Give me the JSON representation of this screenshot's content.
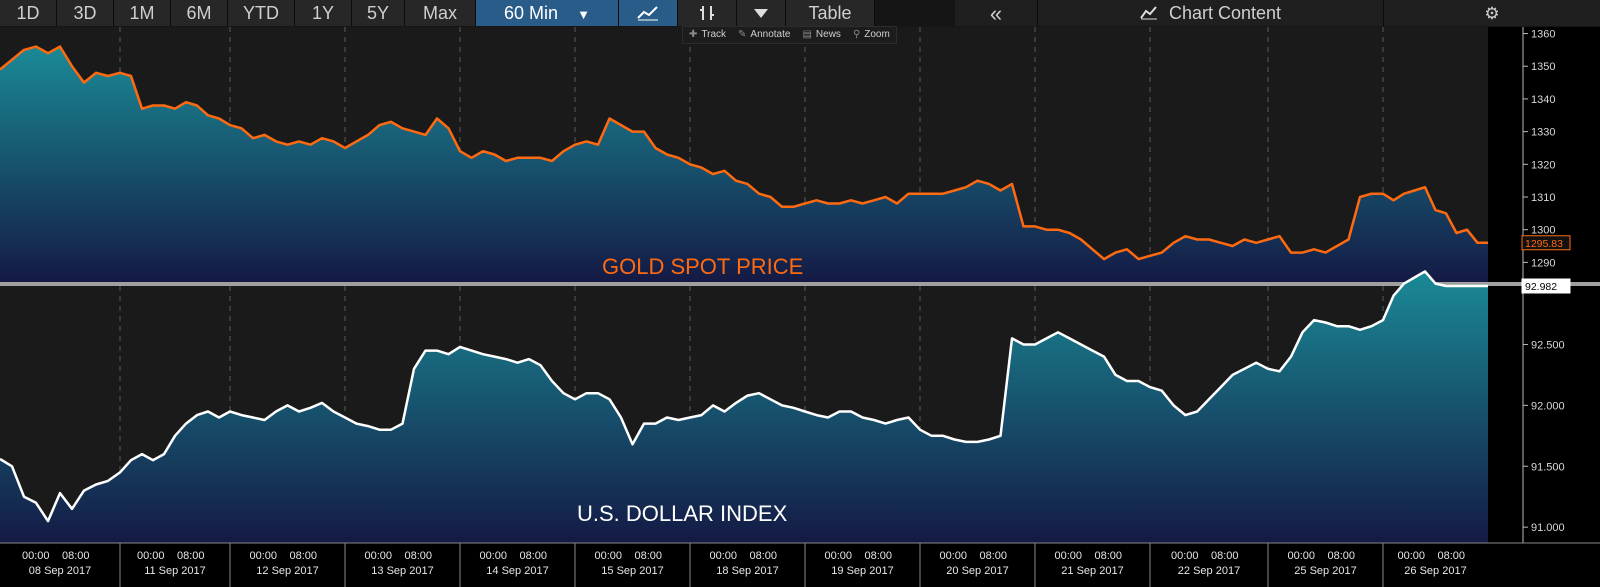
{
  "toolbar": {
    "ranges": [
      "1D",
      "3D",
      "1M",
      "6M",
      "YTD",
      "1Y",
      "5Y",
      "Max"
    ],
    "interval": "60 Min",
    "table_label": "Table",
    "collapse_label": "«",
    "chart_content_label": "Chart Content"
  },
  "minitools": {
    "track": "Track",
    "annotate": "Annotate",
    "news": "News",
    "zoom": "Zoom"
  },
  "colors": {
    "gold_line": "#ff6a10",
    "dxy_line": "#ffffff",
    "area_top": "#1a8a96",
    "area_bottom": "#141a45",
    "background": "#1a1a1a"
  },
  "chart_data": [
    {
      "type": "area",
      "title": "GOLD SPOT PRICE",
      "ylim": [
        1284,
        1362
      ],
      "yticks": [
        1290,
        1300,
        1310,
        1320,
        1330,
        1340,
        1350,
        1360
      ],
      "last_value_label": "1295.83",
      "dates": [
        "08 Sep 2017",
        "11 Sep 2017",
        "12 Sep 2017",
        "13 Sep 2017",
        "14 Sep 2017",
        "15 Sep 2017",
        "18 Sep 2017",
        "19 Sep 2017",
        "20 Sep 2017",
        "21 Sep 2017",
        "22 Sep 2017",
        "25 Sep 2017",
        "26 Sep 2017"
      ],
      "series": [
        {
          "values": [
            [
              [
                1349,
                1352,
                1355,
                1356,
                1354,
                1356,
                1350,
                1345,
                1348,
                1347
              ],
              [
                1348,
                1347,
                1337,
                1338,
                1338,
                1337,
                1339,
                1338,
                1335,
                1334
              ],
              [
                1332,
                1331,
                1328,
                1329,
                1327,
                1326,
                1327,
                1326,
                1328,
                1327
              ],
              [
                1325,
                1327,
                1329,
                1332,
                1333,
                1331,
                1330,
                1329,
                1334,
                1331
              ],
              [
                1324,
                1322,
                1324,
                1323,
                1321,
                1322,
                1322,
                1322,
                1321,
                1324
              ],
              [
                1326,
                1327,
                1326,
                1334,
                1332,
                1330,
                1330,
                1325,
                1323,
                1322
              ],
              [
                1320,
                1319,
                1317,
                1318,
                1315,
                1314,
                1311,
                1310,
                1307,
                1307
              ],
              [
                1308,
                1309,
                1308,
                1308,
                1309,
                1308,
                1309,
                1310,
                1308,
                1311
              ],
              [
                1311,
                1311,
                1311,
                1312,
                1313,
                1315,
                1314,
                1312,
                1314,
                1301
              ],
              [
                1301,
                1300,
                1300,
                1299,
                1297,
                1294,
                1291,
                1293,
                1294,
                1291
              ],
              [
                1292,
                1293,
                1296,
                1298,
                1297,
                1297,
                1296,
                1295,
                1297,
                1296
              ],
              [
                1297,
                1298,
                1293,
                1293,
                1294,
                1293,
                1295,
                1297,
                1310,
                1311
              ],
              [
                1311,
                1309,
                1311,
                1312,
                1313,
                1306,
                1305,
                1299,
                1300,
                1296
              ]
            ]
          ]
        }
      ]
    },
    {
      "type": "area",
      "title": "U.S. DOLLAR INDEX",
      "ylim": [
        90.87,
        92.98
      ],
      "ylim_note": "",
      "yticks": [
        91.0,
        91.5,
        92.0,
        92.5
      ],
      "ytick_labels": [
        "91.000",
        "91.500",
        "92.000",
        "92.500"
      ],
      "last_value_label": "92.982",
      "series": [
        {
          "values": [
            [
              [
                91.56,
                91.5,
                91.25,
                91.2,
                91.05,
                91.28,
                91.15,
                91.3,
                91.35,
                91.38
              ],
              [
                91.45,
                91.55,
                91.6,
                91.55,
                91.6,
                91.75,
                91.85,
                91.92,
                91.95,
                91.9
              ],
              [
                91.95,
                91.92,
                91.9,
                91.88,
                91.95,
                92.0,
                91.95,
                91.98,
                92.02,
                91.95
              ],
              [
                91.9,
                91.85,
                91.83,
                91.8,
                91.8,
                91.85,
                92.3,
                92.45,
                92.45,
                92.42
              ],
              [
                92.48,
                92.45,
                92.42,
                92.4,
                92.38,
                92.35,
                92.38,
                92.33,
                92.2,
                92.1
              ],
              [
                92.05,
                92.1,
                92.1,
                92.05,
                91.9,
                91.68,
                91.85,
                91.85,
                91.9,
                91.88
              ],
              [
                91.9,
                91.92,
                92.0,
                91.95,
                92.02,
                92.08,
                92.1,
                92.05,
                92.0,
                91.98
              ],
              [
                91.95,
                91.92,
                91.9,
                91.95,
                91.95,
                91.9,
                91.88,
                91.85,
                91.88,
                91.9
              ],
              [
                91.8,
                91.75,
                91.75,
                91.72,
                91.7,
                91.7,
                91.72,
                91.75,
                92.55,
                92.5
              ],
              [
                92.5,
                92.55,
                92.6,
                92.55,
                92.5,
                92.45,
                92.4,
                92.25,
                92.2,
                92.2
              ],
              [
                92.15,
                92.12,
                92.0,
                91.92,
                91.95,
                92.05,
                92.15,
                92.25,
                92.3,
                92.35
              ],
              [
                92.3,
                92.28,
                92.4,
                92.6,
                92.7,
                92.68,
                92.65,
                92.65,
                92.62,
                92.65
              ],
              [
                92.7,
                92.9,
                93.0,
                93.05,
                93.1,
                93.0,
                92.98,
                92.98,
                92.98,
                92.98
              ]
            ]
          ]
        }
      ]
    }
  ],
  "date_axis": {
    "hours": [
      "00:00",
      "08:00"
    ],
    "dates": [
      "08 Sep 2017",
      "11 Sep 2017",
      "12 Sep 2017",
      "13 Sep 2017",
      "14 Sep 2017",
      "15 Sep 2017",
      "18 Sep 2017",
      "19 Sep 2017",
      "20 Sep 2017",
      "21 Sep 2017",
      "22 Sep 2017",
      "25 Sep 2017",
      "26 Sep 2017"
    ]
  }
}
